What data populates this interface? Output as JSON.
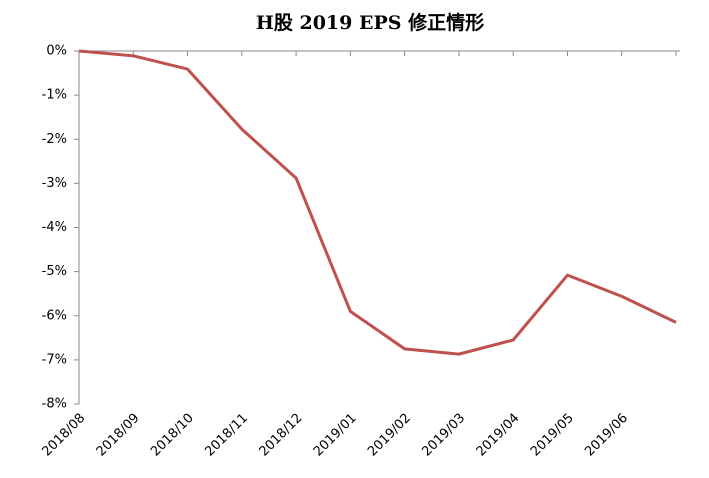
{
  "chart_data": {
    "type": "line",
    "title": "H股 2019 EPS 修正情形",
    "categories": [
      "2018/08",
      "2018/09",
      "2018/10",
      "2018/11",
      "2018/12",
      "2019/01",
      "2019/02",
      "2019/03",
      "2019/04",
      "2019/05",
      "2019/06",
      null
    ],
    "series": [
      {
        "name": "EPS 修正",
        "color": "#c0504d",
        "values": [
          0,
          -0.11,
          -0.41,
          -1.77,
          -2.88,
          -5.9,
          -6.75,
          -6.87,
          -6.55,
          -5.08,
          -5.56,
          -6.15
        ]
      }
    ],
    "ylim": [
      -8,
      0
    ],
    "yticks": [
      {
        "value": 0,
        "label": "0%"
      },
      {
        "value": -1,
        "label": "-1%"
      },
      {
        "value": -2,
        "label": "-2%"
      },
      {
        "value": -3,
        "label": "-3%"
      },
      {
        "value": -4,
        "label": "-4%"
      },
      {
        "value": -5,
        "label": "-5%"
      },
      {
        "value": -6,
        "label": "-6%"
      },
      {
        "value": -7,
        "label": "-7%"
      },
      {
        "value": -8,
        "label": "-8%"
      }
    ],
    "grid": false
  }
}
